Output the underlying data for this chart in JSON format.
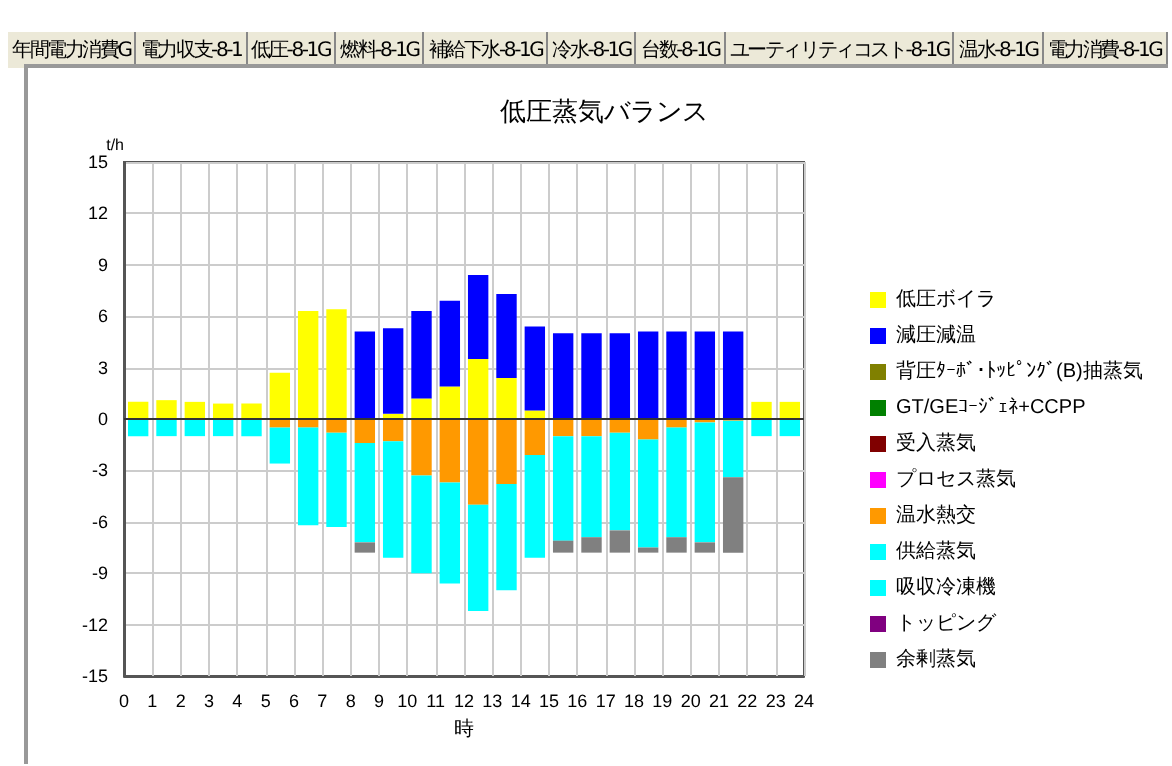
{
  "chart_data": {
    "type": "bar",
    "title": "低圧蒸気バランス",
    "xlabel": "時",
    "ylabel": "t/h",
    "annotations": [
      "年間電力消費G",
      "電力収支-8-1",
      "低圧-8-1G",
      "燃料-8-1G",
      "補給下水-8-1G",
      "冷水-8-1G",
      "台数-8-1G",
      "ユーティリティコスト-8-1G",
      "温水-8-1G",
      "電力消費-8-1G"
    ],
    "x": [
      0.5,
      1.5,
      2.5,
      3.5,
      4.5,
      5.5,
      6.5,
      7.5,
      8.5,
      9.5,
      10.5,
      11.5,
      12.5,
      13.5,
      14.5,
      15.5,
      16.5,
      17.5,
      18.5,
      19.5,
      20.5,
      21.5,
      22.5,
      23.5
    ],
    "stacked": true,
    "series": [
      {
        "name": "低圧ボイラ",
        "color": "#ffff00",
        "values": [
          1.0,
          1.1,
          1.0,
          0.9,
          0.9,
          2.7,
          6.3,
          6.4,
          null,
          0.3,
          1.2,
          1.9,
          3.5,
          2.4,
          0.5,
          null,
          null,
          null,
          null,
          null,
          null,
          null,
          1.0,
          1.0
        ]
      },
      {
        "name": "減圧減温",
        "color": "#0000ff",
        "values": [
          null,
          null,
          null,
          null,
          null,
          null,
          null,
          null,
          5.1,
          5.0,
          5.1,
          5.0,
          4.9,
          4.9,
          4.9,
          5.0,
          5.0,
          5.0,
          5.1,
          5.1,
          5.1,
          5.1,
          null,
          null
        ]
      },
      {
        "name": "背圧ﾀｰﾎﾞ･ﾄｯﾋﾟﾝｸﾞ(B)抽蒸気",
        "color": "#808000",
        "values": [
          null,
          null,
          null,
          null,
          null,
          null,
          null,
          null,
          null,
          null,
          null,
          null,
          null,
          null,
          null,
          null,
          null,
          null,
          null,
          null,
          null,
          null,
          null,
          null
        ]
      },
      {
        "name": "GT/GEｺｰｼﾞｪﾈ+CCPP",
        "color": "#008000",
        "values": [
          null,
          null,
          null,
          null,
          null,
          null,
          null,
          null,
          null,
          null,
          null,
          null,
          null,
          null,
          null,
          null,
          null,
          null,
          null,
          null,
          null,
          null,
          null,
          null
        ]
      },
      {
        "name": "受入蒸気",
        "color": "#800000",
        "values": [
          null,
          null,
          null,
          null,
          null,
          null,
          null,
          null,
          null,
          null,
          null,
          null,
          null,
          null,
          null,
          null,
          null,
          null,
          null,
          null,
          null,
          null,
          null,
          null
        ]
      },
      {
        "name": "プロセス蒸気",
        "color": "#ff00ff",
        "values": [
          null,
          null,
          null,
          null,
          null,
          null,
          null,
          null,
          null,
          null,
          null,
          null,
          null,
          null,
          null,
          null,
          null,
          null,
          null,
          null,
          null,
          null,
          null,
          null
        ]
      },
      {
        "name": "温水熱交",
        "color": "#ff9900",
        "values": [
          null,
          null,
          null,
          null,
          null,
          -0.5,
          -0.5,
          -0.8,
          -1.4,
          -1.3,
          -3.3,
          -3.7,
          -5.0,
          -3.8,
          -2.1,
          -1.0,
          -1.0,
          -0.8,
          -1.2,
          -0.5,
          -0.2,
          -0.1,
          null,
          null
        ]
      },
      {
        "name": "供給蒸気",
        "color": "#00ffff",
        "values": [
          -1.0,
          -1.0,
          -1.0,
          -1.0,
          -1.0,
          -2.1,
          -5.7,
          -5.5,
          -5.8,
          -6.8,
          -5.7,
          -5.9,
          -6.2,
          -6.2,
          -6.0,
          -6.1,
          -5.9,
          -5.7,
          -6.3,
          -6.4,
          -7.0,
          -3.3,
          -1.0,
          -1.0
        ]
      },
      {
        "name": "吸収冷凍機",
        "color": "#00ffff",
        "values": [
          null,
          null,
          null,
          null,
          null,
          null,
          null,
          null,
          null,
          null,
          null,
          null,
          null,
          null,
          null,
          null,
          null,
          null,
          null,
          null,
          null,
          null,
          null,
          null
        ]
      },
      {
        "name": "トッピング",
        "color": "#800080",
        "values": [
          null,
          null,
          null,
          null,
          null,
          null,
          null,
          null,
          null,
          null,
          null,
          null,
          null,
          null,
          null,
          null,
          null,
          null,
          null,
          null,
          null,
          null,
          null,
          null
        ]
      },
      {
        "name": "余剰蒸気",
        "color": "#808080",
        "values": [
          null,
          null,
          null,
          null,
          null,
          null,
          null,
          null,
          -0.6,
          null,
          null,
          null,
          null,
          null,
          null,
          -0.7,
          -0.9,
          -1.3,
          -0.3,
          -0.9,
          -0.6,
          -4.4,
          null,
          null
        ]
      }
    ],
    "xlim": [
      0,
      24
    ],
    "xticks": [
      0,
      1,
      2,
      3,
      4,
      5,
      6,
      7,
      8,
      9,
      10,
      11,
      12,
      13,
      14,
      15,
      16,
      17,
      18,
      19,
      20,
      21,
      22,
      23,
      24
    ],
    "ylim": [
      -15,
      15
    ],
    "yticks": [
      -15,
      -12,
      -9,
      -6,
      -3,
      0,
      3,
      6,
      9,
      12,
      15
    ],
    "grid": true,
    "legend": "right"
  }
}
